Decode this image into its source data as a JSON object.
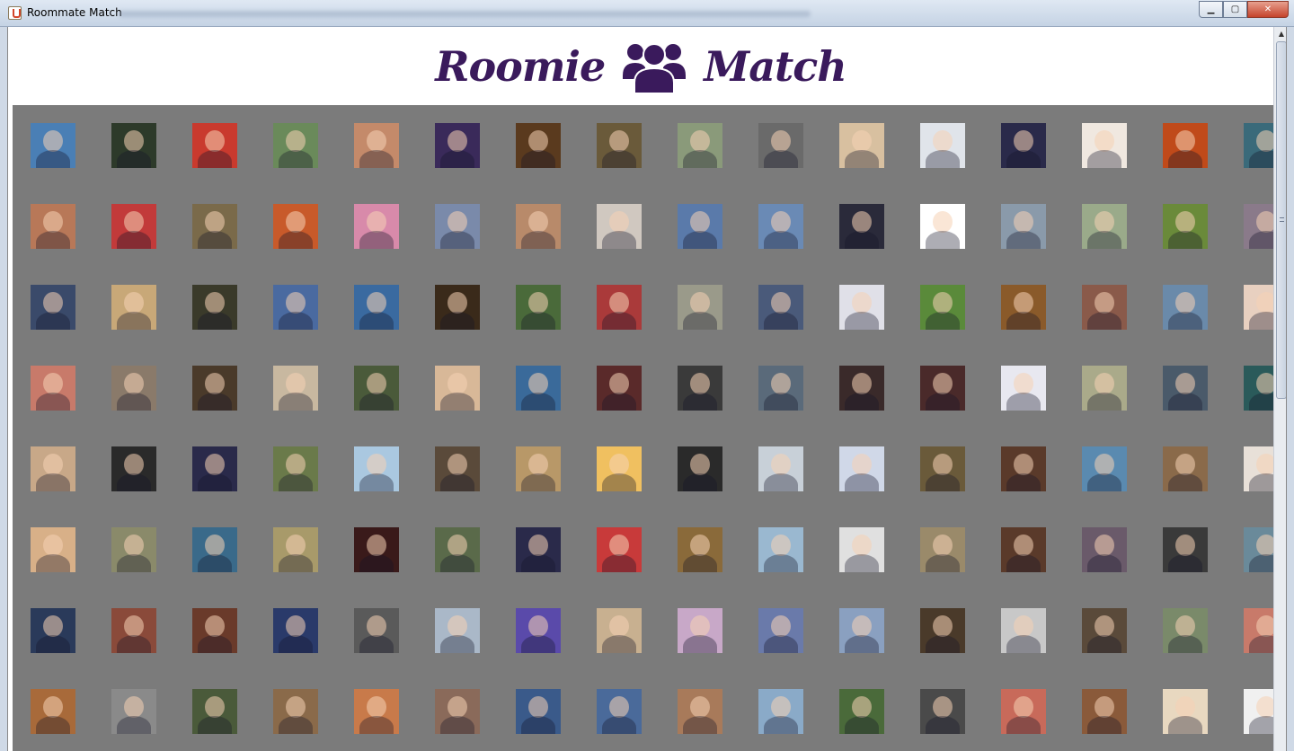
{
  "window": {
    "title": "Roommate Match",
    "minimize_label": "▁",
    "maximize_label": "▢",
    "close_label": "✕"
  },
  "logo": {
    "left_word": "Roomie",
    "right_word": "Match",
    "icon": "people-group-icon",
    "color": "#3a1a5c"
  },
  "grid": {
    "background": "#7b7b7b",
    "columns": 16,
    "rows": 8,
    "tiles": [
      "#4a7fb5",
      "#2d3a2a",
      "#c93a2e",
      "#6a8a5a",
      "#c48a6a",
      "#3a2a5a",
      "#5a3a1e",
      "#6a5a3a",
      "#8a9a7a",
      "#6a6a6a",
      "#d8c0a0",
      "#e0e4ea",
      "#2a2a4a",
      "#f0e8e0",
      "#c04a1a",
      "#3a6a7a",
      "#b87858",
      "#c23a3a",
      "#7a6a4a",
      "#c85a2a",
      "#d88aaa",
      "#7a8aaa",
      "#b88a6a",
      "#d0c8c0",
      "#5a7aaa",
      "#6a8ab5",
      "#2a2a3a",
      "#ffffff",
      "#8a9aaa",
      "#9aaa8a",
      "#6a8a3a",
      "#8a7a8a",
      "#3a4a6a",
      "#c8a878",
      "#3a3a2a",
      "#4a6aa0",
      "#3a6aa0",
      "#3a2a1a",
      "#4a6a3a",
      "#aa3a3a",
      "#9a9a8a",
      "#4a5a7a",
      "#e0e0e8",
      "#5a8a3a",
      "#8a5a2a",
      "#8a5a4a",
      "#6a8aaa",
      "#e8d0c0",
      "#c87a6a",
      "#8a7a6a",
      "#4a3a2a",
      "#c8b8a0",
      "#4a5a3a",
      "#d8b898",
      "#3a6a9a",
      "#5a2a2a",
      "#3a3a3a",
      "#5a6a7a",
      "#3a2a2a",
      "#4a2a2a",
      "#e8e8f0",
      "#aaaa8a",
      "#4a5a6a",
      "#2a5a5a",
      "#c8a888",
      "#2a2a2a",
      "#2a2a4a",
      "#6a7a4a",
      "#aac8e0",
      "#5a4a3a",
      "#b89868",
      "#f0c060",
      "#2a2a2a",
      "#c8d0d8",
      "#d0d8e8",
      "#6a5a3a",
      "#5a3a2a",
      "#5a8ab0",
      "#8a6a4a",
      "#e8e0d8",
      "#d8b088",
      "#8a8a6a",
      "#3a6a8a",
      "#a89a6a",
      "#3a1a1a",
      "#5a6a4a",
      "#2a2a4a",
      "#c83a3a",
      "#8a6a3a",
      "#9ab8d0",
      "#e0e0e0",
      "#9a8a6a",
      "#5a3a2a",
      "#6a5a6a",
      "#3a3a3a",
      "#6a8a9a",
      "#2a3a5a",
      "#8a4a3a",
      "#6a3a2a",
      "#2a3a6a",
      "#5a5a5a",
      "#aab8c8",
      "#5a4aaa",
      "#c8b090",
      "#c8a8c8",
      "#6a7aaa",
      "#8aa0c0",
      "#4a3a2a",
      "#c8c8c8",
      "#5a4a3a",
      "#7a8a6a",
      "#c87a6a",
      "#a86a3a",
      "#8a8a8a",
      "#4a5a3a",
      "#8a6a4a",
      "#c87a4a",
      "#8a6a5a",
      "#3a5a8a",
      "#4a6a9a",
      "#a87a5a",
      "#8aaac8",
      "#4a6a3a",
      "#4a4a4a",
      "#c86a5a",
      "#8a5a3a",
      "#e8d8c0",
      "#f0f0f0"
    ]
  }
}
